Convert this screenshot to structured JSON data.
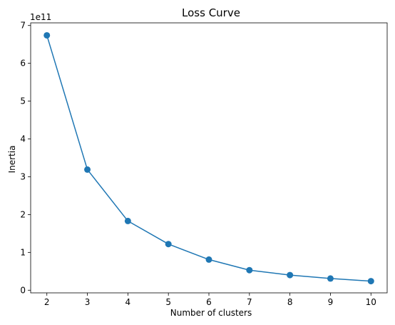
{
  "chart_data": {
    "type": "line",
    "title": "Loss Curve",
    "xlabel": "Number of clusters",
    "ylabel": "Inertia",
    "y_offset_label": "1e11",
    "x": [
      2,
      3,
      4,
      5,
      6,
      7,
      8,
      9,
      10
    ],
    "series": [
      {
        "values": [
          6.74,
          3.19,
          1.83,
          1.22,
          0.81,
          0.53,
          0.4,
          0.31,
          0.24
        ],
        "color": "#1f77b4",
        "marker": "circle"
      }
    ],
    "xlim": [
      1.6,
      10.4
    ],
    "ylim": [
      -0.07,
      7.07
    ],
    "xticks": [
      2,
      3,
      4,
      5,
      6,
      7,
      8,
      9,
      10
    ],
    "yticks": [
      0,
      1,
      2,
      3,
      4,
      5,
      6,
      7
    ],
    "grid": false,
    "legend": false
  }
}
